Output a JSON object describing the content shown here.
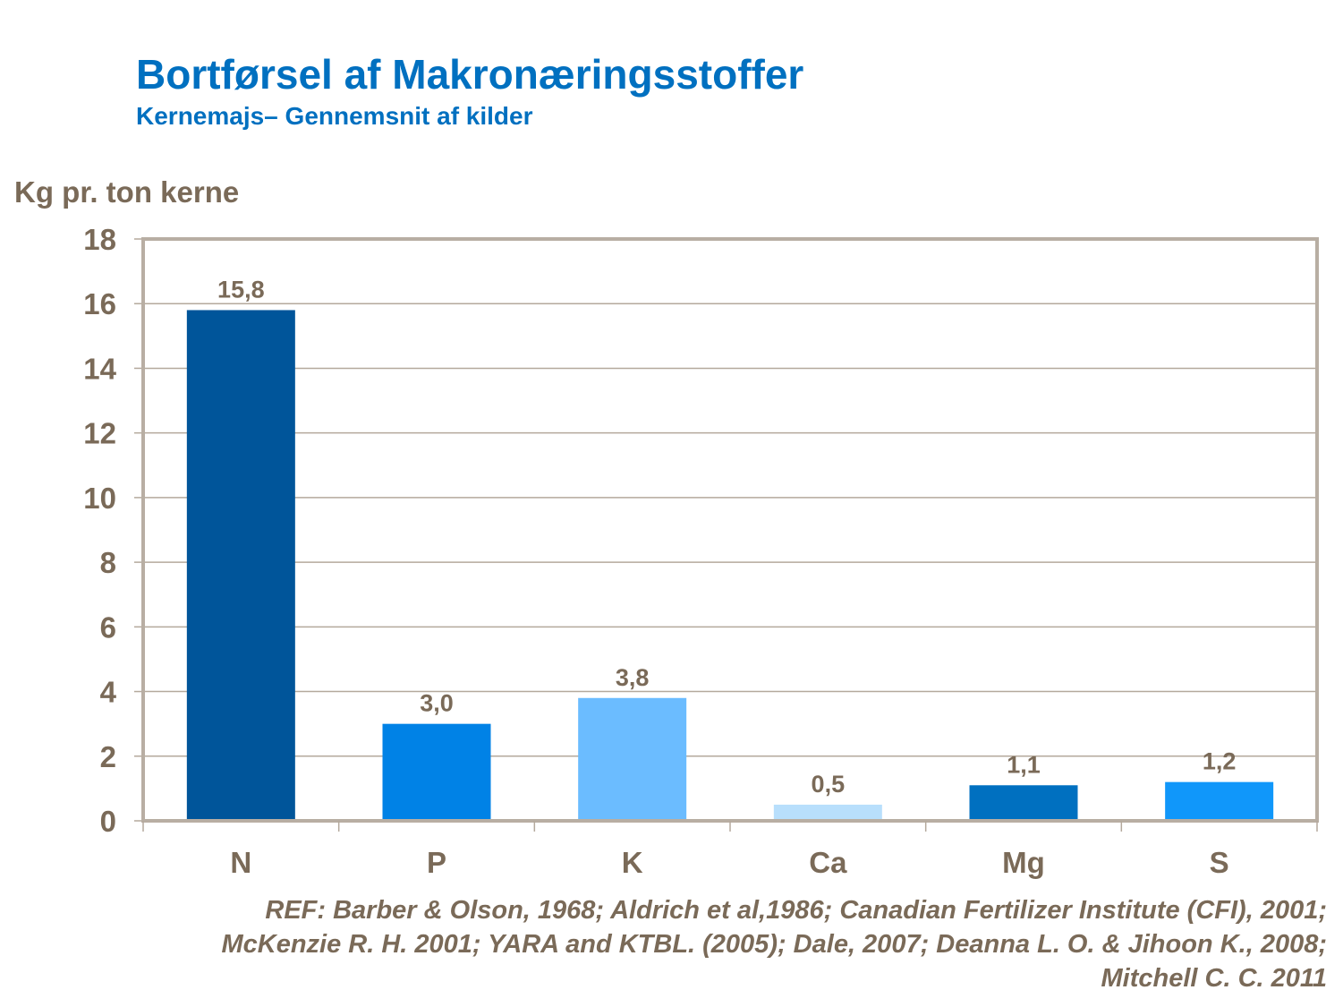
{
  "chart_data": {
    "type": "bar",
    "title": "Bortførsel af Makronæringsstoffer",
    "subtitle": "Kernemajs– Gennemsnit af kilder",
    "xlabel": "",
    "ylabel": "Kg pr. ton kerne",
    "ylim": [
      0,
      18
    ],
    "yticks": [
      0,
      2,
      4,
      6,
      8,
      10,
      12,
      14,
      16,
      18
    ],
    "grid": true,
    "categories": [
      "N",
      "P",
      "K",
      "Ca",
      "Mg",
      "S"
    ],
    "values": [
      15.8,
      3.0,
      3.8,
      0.5,
      1.1,
      1.2
    ],
    "data_labels": [
      "15,8",
      "3,0",
      "3,8",
      "0,5",
      "1,1",
      "1,2"
    ],
    "colors": [
      "#00559a",
      "#0082e6",
      "#6bbcff",
      "#b8dffc",
      "#0070c0",
      "#1097fa"
    ]
  },
  "reference": {
    "lines": [
      "REF: Barber & Olson, 1968; Aldrich et al,1986; Canadian Fertilizer Institute (CFI), 2001;",
      "McKenzie R. H. 2001; YARA and KTBL. (2005); Dale, 2007; Deanna L. O. & Jihoon K.,  2008;",
      "Mitchell C. C. 2011"
    ]
  }
}
